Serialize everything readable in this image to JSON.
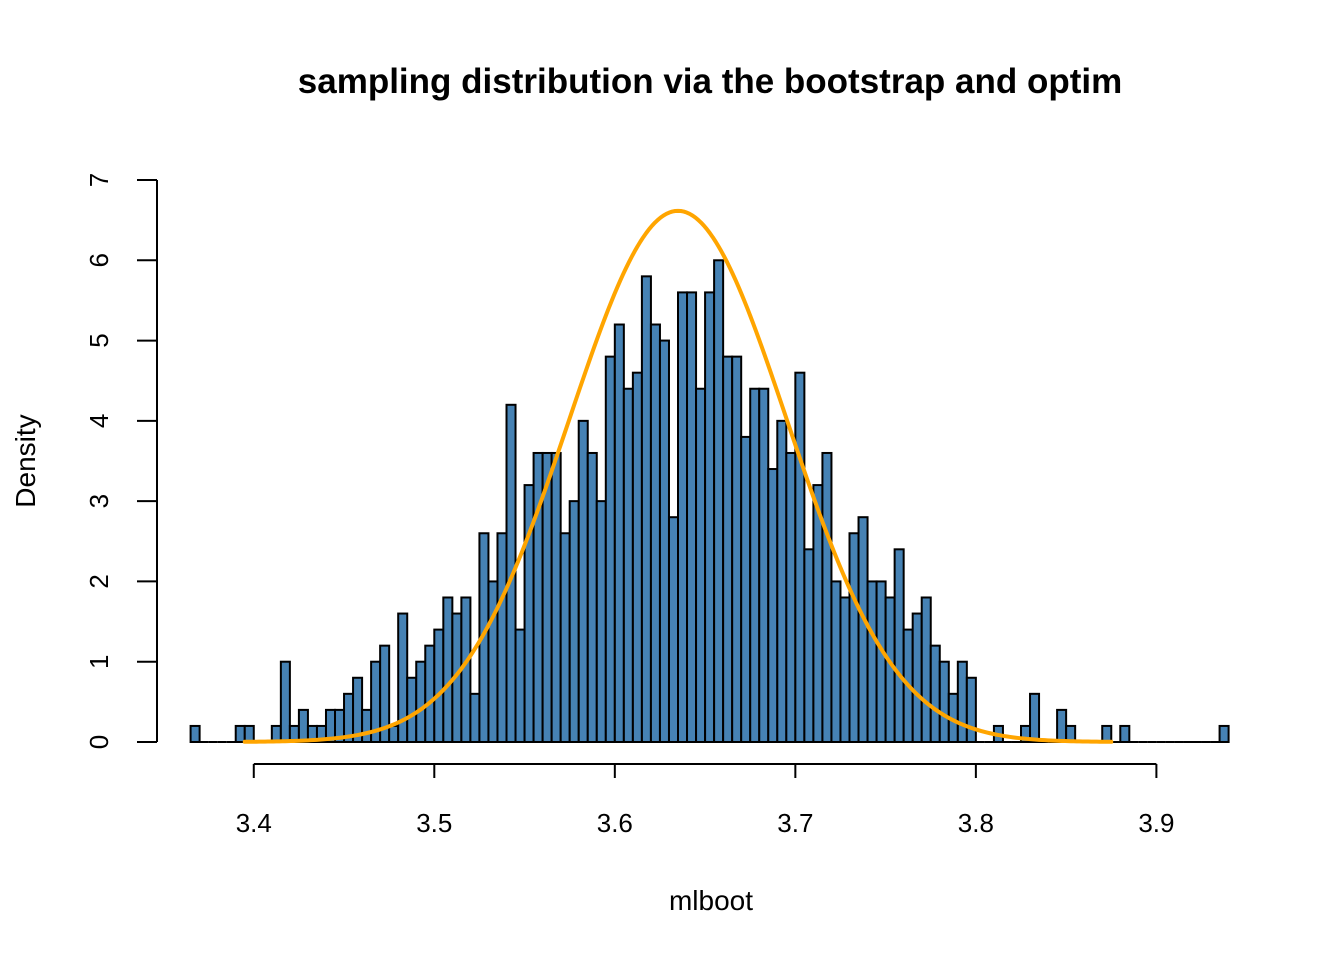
{
  "chart_data": {
    "type": "bar",
    "title": "sampling distribution via the bootstrap and optim",
    "xlabel": "mlboot",
    "ylabel": "Density",
    "xlim": [
      3.3475,
      3.9585
    ],
    "ylim": [
      0,
      7
    ],
    "xticks": [
      3.4,
      3.5,
      3.6,
      3.7,
      3.8,
      3.9
    ],
    "yticks": [
      0,
      1,
      2,
      3,
      4,
      5,
      6,
      7
    ],
    "grid": false,
    "legend": "none",
    "bar_color": "#4682B4",
    "bar_edge_color": "#000000",
    "curve_color": "#FFA500",
    "bin_start": 3.365,
    "bin_width": 0.005,
    "values": [
      0.2,
      0,
      0,
      0,
      0,
      0.2,
      0.2,
      0,
      0,
      0.2,
      1.0,
      0.2,
      0.4,
      0.2,
      0.2,
      0.4,
      0.4,
      0.6,
      0.8,
      0.4,
      1.0,
      1.2,
      0.2,
      1.6,
      0.8,
      1.0,
      1.2,
      1.4,
      1.8,
      1.6,
      1.8,
      0.6,
      2.6,
      2.0,
      2.6,
      4.2,
      1.4,
      3.2,
      3.6,
      3.6,
      3.6,
      2.6,
      3.0,
      4.0,
      3.6,
      3.0,
      4.8,
      5.2,
      4.4,
      4.6,
      5.8,
      5.2,
      5.0,
      2.8,
      5.6,
      5.6,
      4.4,
      5.6,
      6.0,
      4.8,
      4.8,
      3.8,
      4.4,
      4.4,
      3.4,
      4.0,
      3.6,
      4.6,
      2.4,
      3.2,
      3.6,
      2.0,
      1.8,
      2.6,
      2.8,
      2.0,
      2.0,
      1.8,
      2.4,
      1.4,
      1.6,
      1.8,
      1.2,
      1.0,
      0.6,
      1.0,
      0.8,
      0,
      0,
      0.2,
      0,
      0,
      0.2,
      0.6,
      0,
      0,
      0.4,
      0.2,
      0,
      0,
      0,
      0.2,
      0,
      0.2,
      0,
      0,
      0,
      0,
      0,
      0,
      0,
      0,
      0,
      0,
      0.2
    ],
    "normal_curve": {
      "mean": 3.635,
      "sd": 0.0603,
      "x_range": [
        3.395,
        3.875
      ]
    }
  }
}
